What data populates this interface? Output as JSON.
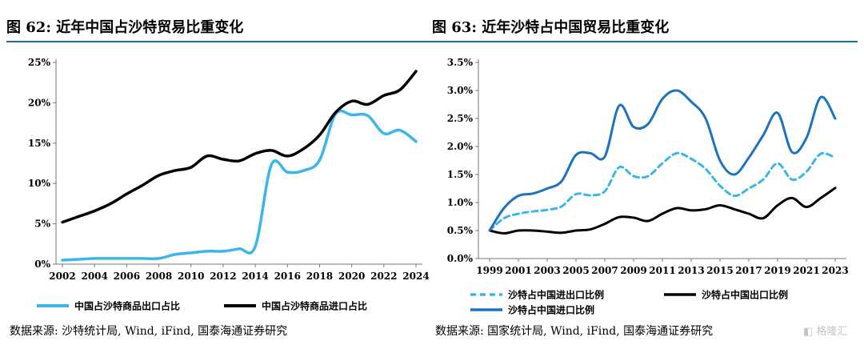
{
  "left": {
    "title": "图 62:  近年中国占沙特贸易比重变化",
    "source": "数据来源:  沙特统计局, Wind, iFind, 国泰海通证券研究",
    "chart_data": {
      "type": "line",
      "x": [
        2002,
        2003,
        2004,
        2005,
        2006,
        2007,
        2008,
        2009,
        2010,
        2011,
        2012,
        2013,
        2014,
        2015,
        2016,
        2017,
        2018,
        2019,
        2020,
        2021,
        2022,
        2023,
        2024
      ],
      "xticks": [
        "2002",
        "2004",
        "2006",
        "2008",
        "2010",
        "2012",
        "2014",
        "2016",
        "2018",
        "2020",
        "2022",
        "2024"
      ],
      "yticks": [
        "0%",
        "5%",
        "10%",
        "15%",
        "20%",
        "25%"
      ],
      "ylim": [
        0,
        25
      ],
      "series": [
        {
          "name": "中国占沙特商品出口占比",
          "color": "#3cb6ea",
          "width": 3.5,
          "dash": "",
          "values": [
            0.5,
            0.6,
            0.7,
            0.7,
            0.7,
            0.7,
            0.7,
            1.2,
            1.4,
            1.6,
            1.6,
            1.9,
            2.2,
            12.3,
            11.4,
            11.6,
            12.9,
            18.6,
            18.5,
            18.4,
            16.2,
            16.6,
            15.2
          ]
        },
        {
          "name": "中国占沙特商品进口占比",
          "color": "#000000",
          "width": 3.5,
          "dash": "",
          "values": [
            5.2,
            5.9,
            6.6,
            7.5,
            8.7,
            9.8,
            11.0,
            11.6,
            12.0,
            13.4,
            13.0,
            12.8,
            13.7,
            14.1,
            13.4,
            14.3,
            16.0,
            18.8,
            20.2,
            19.8,
            20.9,
            21.6,
            23.9
          ]
        }
      ]
    }
  },
  "right": {
    "title": "图 63:  近年沙特占中国贸易比重变化",
    "source": "数据来源:  国家统计局, Wind, iFind, 国泰海通证券研究",
    "chart_data": {
      "type": "line",
      "x": [
        1999,
        2000,
        2001,
        2002,
        2003,
        2004,
        2005,
        2006,
        2007,
        2008,
        2009,
        2010,
        2011,
        2012,
        2013,
        2014,
        2015,
        2016,
        2017,
        2018,
        2019,
        2020,
        2021,
        2022,
        2023
      ],
      "xticks": [
        "1999",
        "2001",
        "2003",
        "2005",
        "2007",
        "2009",
        "2011",
        "2013",
        "2015",
        "2017",
        "2019",
        "2021",
        "2023"
      ],
      "yticks": [
        "0.0%",
        "0.5%",
        "1.0%",
        "1.5%",
        "2.0%",
        "2.5%",
        "3.0%",
        "3.5%"
      ],
      "ylim": [
        0,
        3.5
      ],
      "series": [
        {
          "name": "沙特占中国进出口比例",
          "color": "#3cb6ea",
          "width": 3,
          "dash": "7,5",
          "values": [
            0.5,
            0.72,
            0.8,
            0.84,
            0.87,
            0.93,
            1.15,
            1.13,
            1.2,
            1.63,
            1.47,
            1.47,
            1.7,
            1.88,
            1.78,
            1.6,
            1.3,
            1.12,
            1.25,
            1.41,
            1.7,
            1.41,
            1.55,
            1.87,
            1.8
          ]
        },
        {
          "name": "沙特占中国出口比例",
          "color": "#000000",
          "width": 3,
          "dash": "",
          "values": [
            0.5,
            0.45,
            0.5,
            0.5,
            0.48,
            0.46,
            0.5,
            0.52,
            0.62,
            0.74,
            0.73,
            0.67,
            0.8,
            0.9,
            0.86,
            0.88,
            0.95,
            0.88,
            0.8,
            0.72,
            0.95,
            1.08,
            0.92,
            1.08,
            1.26
          ]
        },
        {
          "name": "沙特占中国进口比例",
          "color": "#1e73be",
          "width": 3,
          "dash": "",
          "values": [
            0.5,
            0.9,
            1.12,
            1.16,
            1.25,
            1.38,
            1.85,
            1.88,
            1.82,
            2.73,
            2.35,
            2.4,
            2.85,
            3.0,
            2.8,
            2.5,
            1.75,
            1.5,
            1.8,
            2.2,
            2.6,
            1.9,
            2.15,
            2.88,
            2.5
          ]
        }
      ]
    }
  },
  "watermark": "格隆汇"
}
